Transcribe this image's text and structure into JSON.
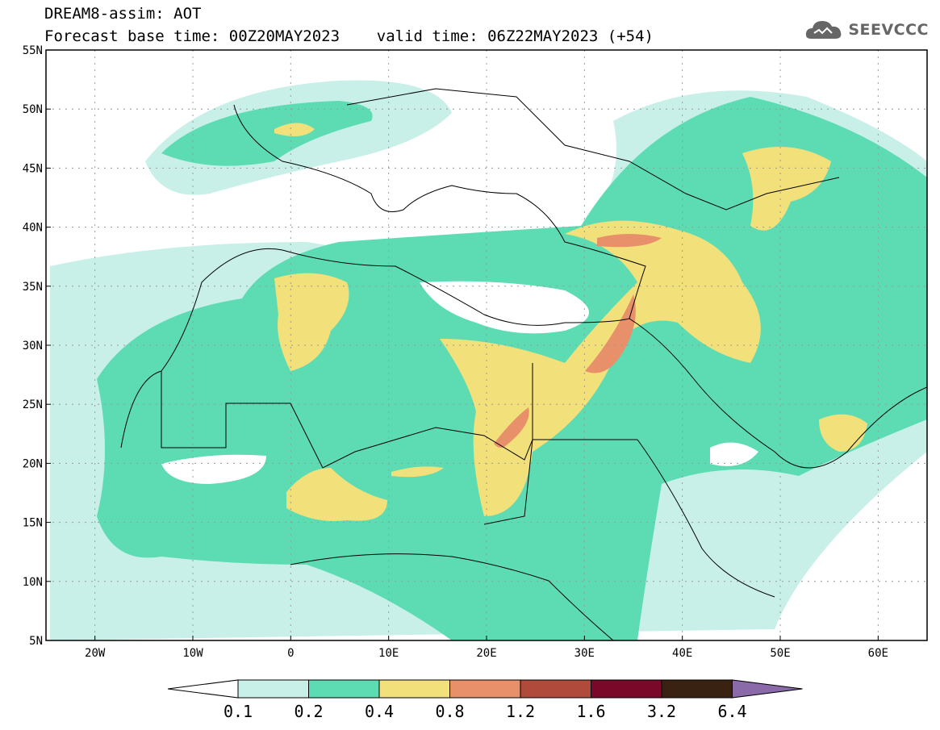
{
  "header": {
    "line1": "DREAM8-assim: AOT",
    "line2": "Forecast base time: 00Z20MAY2023    valid time: 06Z22MAY2023 (+54)"
  },
  "logo": {
    "text": "SEEVCCC",
    "icon": "cloud-icon"
  },
  "map": {
    "lon_range": [
      -25,
      65
    ],
    "lat_range": [
      5,
      55
    ],
    "lon_ticks": [
      "20W",
      "10W",
      "0",
      "10E",
      "20E",
      "30E",
      "40E",
      "50E",
      "60E"
    ],
    "lat_ticks": [
      "55N",
      "50N",
      "45N",
      "40N",
      "35N",
      "30N",
      "25N",
      "20N",
      "15N",
      "10N",
      "5N"
    ],
    "grid": "dotted"
  },
  "colorbar": {
    "levels": [
      "0.1",
      "0.2",
      "0.4",
      "0.8",
      "1.2",
      "1.6",
      "3.2",
      "6.4"
    ],
    "colors": [
      "#c8f0e8",
      "#5ddcb4",
      "#f2e07a",
      "#e8906a",
      "#b04a3a",
      "#7a0828",
      "#3a2212",
      "#8a6aa8"
    ]
  }
}
